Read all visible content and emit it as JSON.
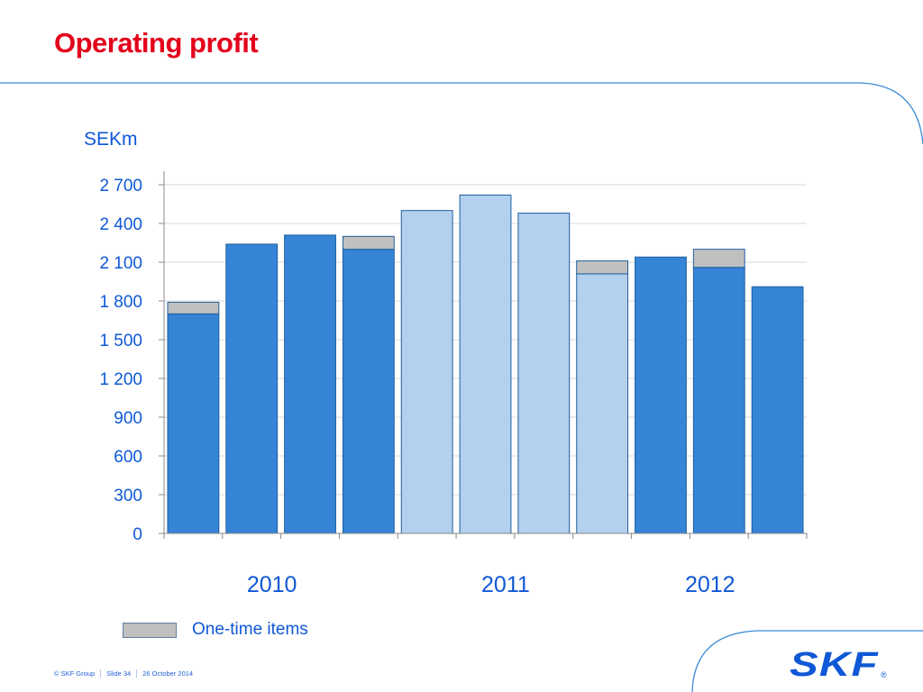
{
  "title": "Operating profit",
  "colors": {
    "title": "#e3001b",
    "text_blue": "#0f58d6",
    "bar_dark": "#3584d6",
    "bar_light": "#b3d0ef",
    "bar_border": "#1f5f9f",
    "one_time": "#c0c0c0",
    "gridline": "#d9d9d9",
    "frame": "#3b8bd6"
  },
  "footer": {
    "copyright": "© SKF Group",
    "slide": "Slide 34",
    "date": "26 October 2014"
  },
  "logo": {
    "text": "SKF",
    "registered": "®"
  },
  "chart_data": {
    "type": "bar",
    "stacked": true,
    "unit_label": "SEKm",
    "ylim": [
      0,
      2700
    ],
    "yticks": [
      0,
      300,
      600,
      900,
      1200,
      1500,
      1800,
      2100,
      2400,
      2700
    ],
    "ytick_labels": [
      "0",
      "300",
      "600",
      "900",
      "1 200",
      "1 500",
      "1 800",
      "2 100",
      "2 400",
      "2 700"
    ],
    "grid": true,
    "year_labels": [
      {
        "label": "2010",
        "bar_start": 0,
        "bar_count": 4
      },
      {
        "label": "2011",
        "bar_start": 4,
        "bar_count": 4
      },
      {
        "label": "2012",
        "bar_start": 8,
        "bar_count": 3
      }
    ],
    "bars": [
      {
        "base": 1700,
        "one_time": 90,
        "shade": "dark"
      },
      {
        "base": 2240,
        "one_time": 0,
        "shade": "dark"
      },
      {
        "base": 2310,
        "one_time": 0,
        "shade": "dark"
      },
      {
        "base": 2200,
        "one_time": 100,
        "shade": "dark"
      },
      {
        "base": 2500,
        "one_time": 0,
        "shade": "light"
      },
      {
        "base": 2620,
        "one_time": 0,
        "shade": "light"
      },
      {
        "base": 2480,
        "one_time": 0,
        "shade": "light"
      },
      {
        "base": 2010,
        "one_time": 100,
        "shade": "light"
      },
      {
        "base": 2140,
        "one_time": 0,
        "shade": "dark"
      },
      {
        "base": 2060,
        "one_time": 140,
        "shade": "dark"
      },
      {
        "base": 1910,
        "one_time": 0,
        "shade": "dark"
      }
    ],
    "legend": [
      {
        "label": "One-time items",
        "color": "#c0c0c0"
      }
    ],
    "legend_position": "bottom-left"
  }
}
